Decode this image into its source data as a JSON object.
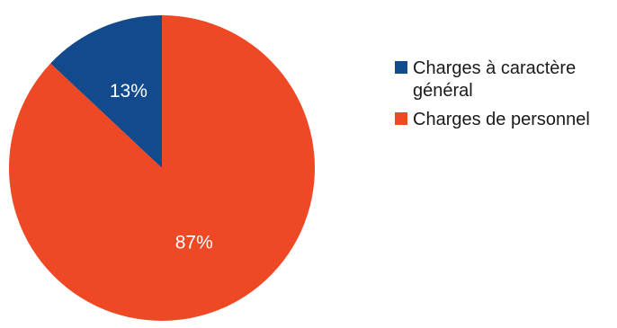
{
  "chart_data": {
    "type": "pie",
    "categories": [
      "Charges à caractère général",
      "Charges de personnel"
    ],
    "values": [
      13,
      87
    ],
    "data_labels": [
      "13%",
      "87%"
    ],
    "colors": [
      "#134a8c",
      "#ef4824"
    ],
    "legend_position": "right",
    "start_angle": "12 o'clock",
    "direction": "counter-clockwise"
  }
}
